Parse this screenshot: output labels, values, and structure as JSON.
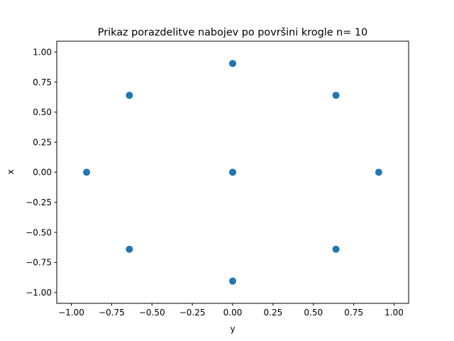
{
  "chart_data": {
    "type": "scatter",
    "title": "Prikaz porazdelitve nabojev po površini krogle n= 10",
    "xlabel": "y",
    "ylabel": "x",
    "xlim": [
      -1.0,
      1.0
    ],
    "ylim": [
      -1.0,
      1.0
    ],
    "xticks": [
      -1.0,
      -0.75,
      -0.5,
      -0.25,
      0.0,
      0.25,
      0.5,
      0.75,
      1.0
    ],
    "xtick_labels": [
      "−1.00",
      "−0.75",
      "−0.50",
      "−0.25",
      "0.00",
      "0.25",
      "0.50",
      "0.75",
      "1.00"
    ],
    "yticks": [
      -1.0,
      -0.75,
      -0.5,
      -0.25,
      0.0,
      0.25,
      0.5,
      0.75,
      1.0
    ],
    "ytick_labels": [
      "−1.00",
      "−0.75",
      "−0.50",
      "−0.25",
      "0.00",
      "0.25",
      "0.50",
      "0.75",
      "1.00"
    ],
    "grid": false,
    "marker_color": "#1f77b4",
    "points": [
      {
        "x": 0.0,
        "y": 0.905
      },
      {
        "x": -0.64,
        "y": 0.64
      },
      {
        "x": 0.64,
        "y": 0.64
      },
      {
        "x": -0.905,
        "y": 0.0
      },
      {
        "x": 0.0,
        "y": 0.0
      },
      {
        "x": 0.0,
        "y": 0.0
      },
      {
        "x": 0.905,
        "y": 0.0
      },
      {
        "x": -0.64,
        "y": -0.64
      },
      {
        "x": 0.64,
        "y": -0.64
      },
      {
        "x": 0.0,
        "y": -0.905
      }
    ]
  }
}
